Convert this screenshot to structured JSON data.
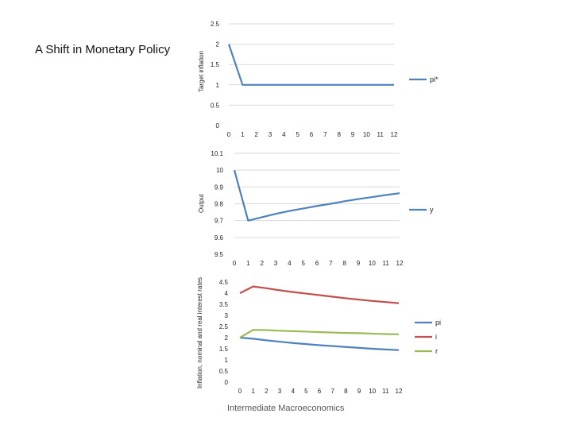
{
  "page": {
    "title": "A Shift in Monetary Policy",
    "footer": "Intermediate Macroeconomics"
  },
  "chart_data": [
    {
      "type": "line",
      "ylabel": "Target inflation",
      "xlabel": "",
      "categories": [
        "0",
        "1",
        "2",
        "3",
        "4",
        "5",
        "6",
        "7",
        "8",
        "9",
        "10",
        "11",
        "12"
      ],
      "ylim": [
        0,
        2.5
      ],
      "y_ticks": [
        "0",
        "0.5",
        "1",
        "1.5",
        "2",
        "2.5"
      ],
      "legend_position": "right",
      "grid": true,
      "series": [
        {
          "name": "pi*",
          "color": "#4f81bd",
          "values": [
            2,
            1,
            1,
            1,
            1,
            1,
            1,
            1,
            1,
            1,
            1,
            1,
            1
          ]
        }
      ]
    },
    {
      "type": "line",
      "ylabel": "Output",
      "xlabel": "",
      "categories": [
        "0",
        "1",
        "2",
        "3",
        "4",
        "5",
        "6",
        "7",
        "8",
        "9",
        "10",
        "11",
        "12"
      ],
      "ylim": [
        9.5,
        10.1
      ],
      "y_ticks": [
        "9.5",
        "9.6",
        "9.7",
        "9.8",
        "9.9",
        "10",
        "10.1"
      ],
      "legend_position": "right",
      "grid": true,
      "series": [
        {
          "name": "y",
          "color": "#4f81bd",
          "values": [
            10,
            9.7,
            9.72,
            9.74,
            9.757,
            9.772,
            9.787,
            9.8,
            9.815,
            9.828,
            9.84,
            9.852,
            9.863
          ]
        }
      ]
    },
    {
      "type": "line",
      "ylabel": "Inflation, nominal and real interest rates",
      "xlabel": "",
      "categories": [
        "0",
        "1",
        "2",
        "3",
        "4",
        "5",
        "6",
        "7",
        "8",
        "9",
        "10",
        "11",
        "12"
      ],
      "ylim": [
        0,
        4.5
      ],
      "y_ticks": [
        "0",
        "0.5",
        "1",
        "1.5",
        "2",
        "2.5",
        "3",
        "3.5",
        "4",
        "4.5"
      ],
      "legend_position": "right",
      "grid": false,
      "series": [
        {
          "name": "pi",
          "color": "#4f81bd",
          "values": [
            2,
            1.95,
            1.88,
            1.82,
            1.76,
            1.71,
            1.66,
            1.62,
            1.58,
            1.54,
            1.5,
            1.47,
            1.44
          ]
        },
        {
          "name": "i",
          "color": "#c0504d",
          "values": [
            4,
            4.3,
            4.22,
            4.13,
            4.05,
            3.98,
            3.91,
            3.84,
            3.77,
            3.71,
            3.65,
            3.6,
            3.55
          ]
        },
        {
          "name": "r",
          "color": "#9bbb59",
          "values": [
            2,
            2.35,
            2.34,
            2.31,
            2.29,
            2.27,
            2.25,
            2.23,
            2.21,
            2.2,
            2.18,
            2.16,
            2.15
          ]
        }
      ]
    }
  ]
}
